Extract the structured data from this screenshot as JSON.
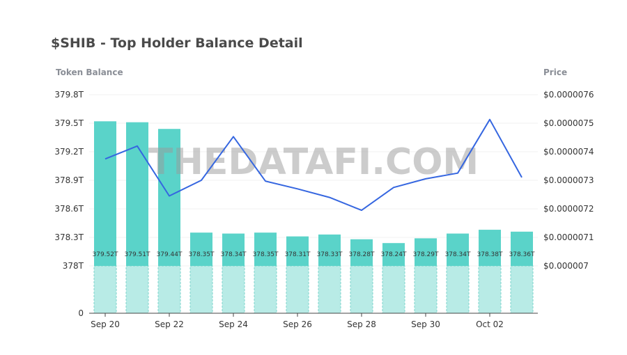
{
  "title": "$SHIB - Top Holder Balance Detail",
  "watermark": "THEDATAFI.COM",
  "colors": {
    "bar": "#5ad3c9",
    "bar_base": "#b8ebe6",
    "bar_base_border": "#7ed6cc",
    "line": "#3566e0",
    "title": "#4a4a4a",
    "axis_title": "#8a8e96",
    "watermark": "#9a9a9a"
  },
  "chart_data": {
    "type": "bar",
    "title": "$SHIB - Top Holder Balance Detail",
    "ylabel": "Token Balance",
    "y2label": "Price",
    "x_ticks": [
      "Sep 20",
      "Sep 22",
      "Sep 24",
      "Sep 26",
      "Sep 28",
      "Sep 30",
      "Oct 02"
    ],
    "categories": [
      "Sep 20",
      "Sep 21",
      "Sep 22",
      "Sep 23",
      "Sep 24",
      "Sep 25",
      "Sep 26",
      "Sep 27",
      "Sep 28",
      "Sep 29",
      "Sep 30",
      "Oct 01",
      "Oct 02",
      "Oct 03"
    ],
    "y_ticks": [
      "0",
      "378T",
      "378.3T",
      "378.6T",
      "378.9T",
      "379.2T",
      "379.5T",
      "379.8T"
    ],
    "y_range_upper": [
      378,
      379.8
    ],
    "y2_ticks": [
      "$0.000007",
      "$0.0000071",
      "$0.0000072",
      "$0.0000073",
      "$0.0000074",
      "$0.0000075",
      "$0.0000076"
    ],
    "y2_range": [
      7e-06,
      7.6e-06
    ],
    "series": [
      {
        "type": "bar",
        "values": [
          379.52,
          379.51,
          379.44,
          378.35,
          378.34,
          378.35,
          378.31,
          378.33,
          378.28,
          378.24,
          378.29,
          378.34,
          378.38,
          378.36
        ],
        "labels": [
          "379.52T",
          "379.51T",
          "379.44T",
          "378.35T",
          "378.34T",
          "378.35T",
          "378.31T",
          "378.33T",
          "378.28T",
          "378.24T",
          "378.29T",
          "378.34T",
          "378.38T",
          "378.36T"
        ]
      },
      {
        "type": "line",
        "values": [
          7.375e-06,
          7.42e-06,
          7.245e-06,
          7.3e-06,
          7.453e-06,
          7.297e-06,
          7.27e-06,
          7.24e-06,
          7.195e-06,
          7.275e-06,
          7.305e-06,
          7.325e-06,
          7.513e-06,
          7.31e-06
        ]
      }
    ]
  }
}
